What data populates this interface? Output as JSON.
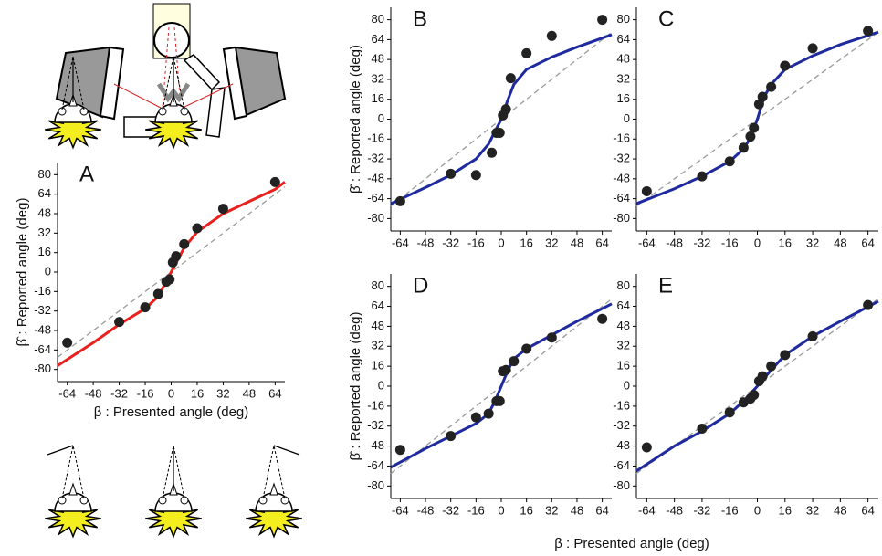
{
  "chart_data": [
    {
      "type": "scatter",
      "label": "A",
      "xlabel": "β : Presented angle (deg)",
      "ylabel": "β̂ : Reported angle (deg)",
      "xlim": [
        -70,
        70
      ],
      "ylim": [
        -90,
        90
      ],
      "xticks": [
        -64,
        -48,
        -32,
        -16,
        0,
        16,
        32,
        48,
        64
      ],
      "yticks": [
        -80,
        -64,
        -48,
        -32,
        -16,
        0,
        16,
        32,
        48,
        64,
        80
      ],
      "series": [
        {
          "style": "dashed",
          "color": "#999999",
          "x": [
            -70,
            70
          ],
          "values": [
            -70,
            70
          ]
        },
        {
          "style": "line",
          "color": "#e8211f",
          "x": [
            -70,
            -48,
            -32,
            -16,
            -8,
            0,
            8,
            16,
            32,
            48,
            64,
            70
          ],
          "values": [
            -77,
            -58,
            -43,
            -30,
            -20,
            0,
            20,
            33,
            48,
            58,
            68,
            74
          ]
        },
        {
          "style": "points",
          "color": "#222222",
          "x": [
            -64,
            -32,
            -16,
            -8,
            -3,
            -1,
            1,
            3,
            8,
            16,
            32,
            64
          ],
          "values": [
            -58,
            -41,
            -29,
            -18,
            -8,
            -6,
            8,
            13,
            23,
            36,
            52,
            74
          ]
        }
      ]
    },
    {
      "type": "scatter",
      "label": "B",
      "ylabel": "β̂ : Reported angle (deg)",
      "xlim": [
        -70,
        70
      ],
      "ylim": [
        -90,
        90
      ],
      "xticks": [
        -64,
        -48,
        -32,
        -16,
        0,
        16,
        32,
        48,
        64
      ],
      "yticks": [
        -80,
        -64,
        -48,
        -32,
        -16,
        0,
        16,
        32,
        48,
        64,
        80
      ],
      "series": [
        {
          "style": "dashed",
          "color": "#999999",
          "x": [
            -70,
            70
          ],
          "values": [
            -70,
            70
          ]
        },
        {
          "style": "line",
          "color": "#1f2a9e",
          "x": [
            -70,
            -48,
            -32,
            -16,
            -8,
            -4,
            0,
            4,
            8,
            16,
            32,
            48,
            70
          ],
          "values": [
            -68,
            -55,
            -45,
            -32,
            -20,
            -10,
            0,
            15,
            28,
            40,
            50,
            58,
            68
          ]
        },
        {
          "style": "points",
          "color": "#222222",
          "x": [
            -64,
            -32,
            -16,
            -6,
            -3,
            -1,
            1,
            3,
            6,
            16,
            32,
            64
          ],
          "values": [
            -66,
            -44,
            -45,
            -27,
            -11,
            -11,
            3,
            8,
            33,
            53,
            67,
            80
          ]
        }
      ]
    },
    {
      "type": "scatter",
      "label": "C",
      "xlim": [
        -70,
        70
      ],
      "ylim": [
        -90,
        90
      ],
      "xticks": [
        -64,
        -48,
        -32,
        -16,
        0,
        16,
        32,
        48,
        64
      ],
      "yticks": [
        -80,
        -64,
        -48,
        -32,
        -16,
        0,
        16,
        32,
        48,
        64,
        80
      ],
      "series": [
        {
          "style": "dashed",
          "color": "#999999",
          "x": [
            -70,
            70
          ],
          "values": [
            -70,
            70
          ]
        },
        {
          "style": "line",
          "color": "#1f2a9e",
          "x": [
            -70,
            -48,
            -32,
            -16,
            -8,
            -4,
            0,
            4,
            8,
            16,
            32,
            48,
            70
          ],
          "values": [
            -68,
            -56,
            -46,
            -34,
            -24,
            -15,
            0,
            18,
            28,
            40,
            51,
            60,
            70
          ]
        },
        {
          "style": "points",
          "color": "#222222",
          "x": [
            -64,
            -32,
            -16,
            -8,
            -4,
            -2,
            1,
            3,
            8,
            16,
            32,
            64
          ],
          "values": [
            -58,
            -46,
            -34,
            -23,
            -14,
            -7,
            12,
            18,
            26,
            43,
            57,
            71
          ]
        }
      ]
    },
    {
      "type": "scatter",
      "label": "D",
      "ylabel": "β̂ : Reported angle (deg)",
      "xlim": [
        -70,
        70
      ],
      "ylim": [
        -90,
        90
      ],
      "xticks": [
        -64,
        -48,
        -32,
        -16,
        0,
        16,
        32,
        48,
        64
      ],
      "yticks": [
        -80,
        -64,
        -48,
        -32,
        -16,
        0,
        16,
        32,
        48,
        64,
        80
      ],
      "series": [
        {
          "style": "dashed",
          "color": "#999999",
          "x": [
            -70,
            70
          ],
          "values": [
            -70,
            70
          ]
        },
        {
          "style": "line",
          "color": "#1f2a9e",
          "x": [
            -70,
            -48,
            -32,
            -16,
            -8,
            -4,
            0,
            4,
            8,
            16,
            32,
            48,
            70
          ],
          "values": [
            -65,
            -50,
            -40,
            -30,
            -22,
            -12,
            0,
            12,
            22,
            30,
            41,
            52,
            66
          ]
        },
        {
          "style": "points",
          "color": "#222222",
          "x": [
            -64,
            -32,
            -16,
            -8,
            -3,
            -1,
            1,
            3,
            8,
            16,
            32,
            64
          ],
          "values": [
            -51,
            -40,
            -25,
            -22,
            -12,
            -12,
            12,
            13,
            20,
            30,
            39,
            54
          ]
        }
      ]
    },
    {
      "type": "scatter",
      "label": "E",
      "xlim": [
        -70,
        70
      ],
      "ylim": [
        -90,
        90
      ],
      "xticks": [
        -64,
        -48,
        -32,
        -16,
        0,
        16,
        32,
        48,
        64
      ],
      "yticks": [
        -80,
        -64,
        -48,
        -32,
        -16,
        0,
        16,
        32,
        48,
        64,
        80
      ],
      "series": [
        {
          "style": "dashed",
          "color": "#999999",
          "x": [
            -70,
            70
          ],
          "values": [
            -70,
            70
          ]
        },
        {
          "style": "line",
          "color": "#1f2a9e",
          "x": [
            -70,
            -48,
            -32,
            -16,
            -8,
            0,
            8,
            16,
            32,
            48,
            70
          ],
          "values": [
            -68,
            -48,
            -36,
            -22,
            -12,
            0,
            13,
            25,
            40,
            52,
            68
          ]
        },
        {
          "style": "points",
          "color": "#222222",
          "x": [
            -64,
            -32,
            -16,
            -8,
            -4,
            -2,
            1,
            3,
            8,
            16,
            32,
            64
          ],
          "values": [
            -49,
            -34,
            -21,
            -13,
            -10,
            -7,
            4,
            8,
            16,
            25,
            40,
            65
          ]
        }
      ]
    }
  ],
  "shared_xlabel": "β : Presented angle (deg)"
}
